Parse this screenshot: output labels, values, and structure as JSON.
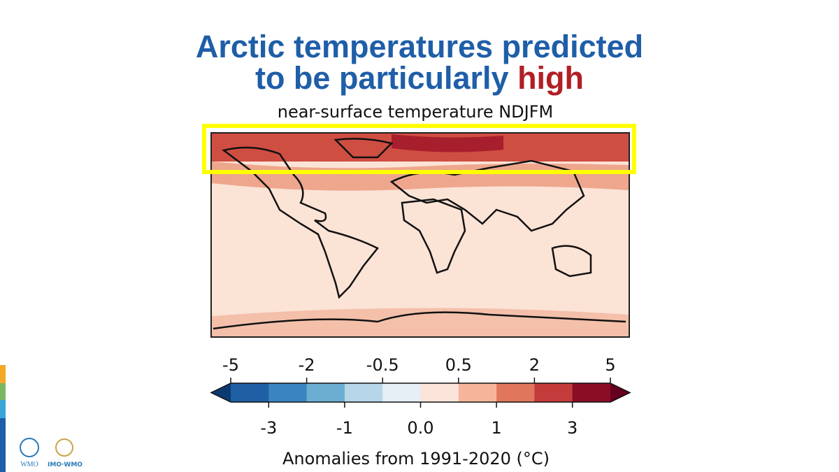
{
  "header": {
    "title": "Arctic temperatures predicted",
    "title_line2": "to be particularly",
    "title_highlight": "high",
    "subtitle": "near-surface temperature NDJFM"
  },
  "colorbar": {
    "levels": [
      -5,
      -3,
      -2,
      -1,
      -0.5,
      0,
      0.5,
      1,
      2,
      3,
      5
    ],
    "colors": [
      "#1f5fa3",
      "#3a84c0",
      "#6baed2",
      "#b7d6ea",
      "#e6eff5",
      "#fbe5da",
      "#f6b59a",
      "#e0775d",
      "#c33b3a",
      "#8b0d25"
    ],
    "under_color": "#0b3a73",
    "over_color": "#67001f",
    "top_ticks": [
      -5,
      -2,
      -0.5,
      0.5,
      2,
      5
    ],
    "bottom_ticks": [
      -3,
      -1,
      {
        "value": 0,
        "label": "0.0"
      },
      1,
      3
    ],
    "label": "Anomalies from 1991-2020 (°C)"
  },
  "footer": {
    "logo1": "WMO",
    "logo2": "IMO·WMO"
  }
}
